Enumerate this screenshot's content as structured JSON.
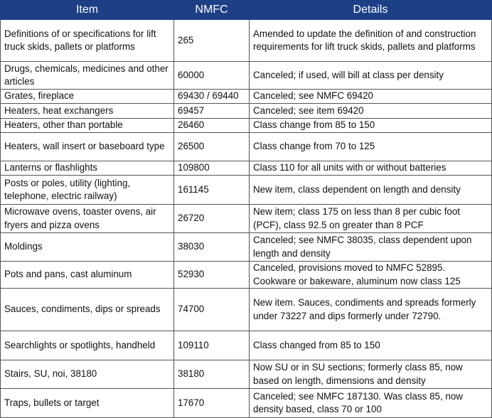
{
  "table": {
    "header": [
      "Item",
      "NMFC",
      "Details"
    ],
    "rows": [
      [
        "Definitions of or specifications for lift truck skids, pallets or platforms",
        "265",
        "Amended to update the definition of and construction requirements for lift truck skids, pallets and platforms"
      ],
      [
        "Drugs, chemicals, medicines and other articles",
        "60000",
        "Canceled; if used, will bill at class per density"
      ],
      [
        "Grates, fireplace",
        "69430 / 69440",
        "Canceled; see NMFC 69420"
      ],
      [
        "Heaters, heat exchangers",
        "69457",
        "Canceled; see item 69420"
      ],
      [
        "Heaters, other than portable",
        "26460",
        "Class change from 85 to 150"
      ],
      [
        "Heaters, wall insert or baseboard type",
        "26500",
        "Class change from 70 to 125"
      ],
      [
        "Lanterns or flashlights",
        "109800",
        "Class 110 for all units with or without batteries"
      ],
      [
        "Posts or poles, utility (lighting, telephone, electric railway)",
        "161145",
        "New item, class dependent on length and density"
      ],
      [
        "Microwave ovens, toaster ovens, air fryers and pizza ovens",
        "26720",
        "New item; class 175 on less than 8 per cubic foot (PCF), class 92.5 on greater than 8 PCF"
      ],
      [
        "Moldings",
        "38030",
        "Canceled; see NMFC 38035, class dependent upon length and density"
      ],
      [
        "Pots and pans, cast aluminum",
        "52930",
        "Canceled, provisions moved to NMFC 52895. Cookware or bakeware, aluminum now class 125"
      ],
      [
        "Sauces, condiments, dips or spreads",
        "74700",
        "New item. Sauces, condiments and spreads formerly under 73227 and dips formerly under 72790."
      ],
      [
        "Searchlights or spotlights, handheld",
        "109110",
        "Class changed from 85 to 150"
      ],
      [
        "Stairs, SU, noi, 38180",
        "38180",
        "Now SU or in SU sections; formerly class 85, now based on length, dimensions and density"
      ],
      [
        "Traps, bullets or target",
        "17670",
        "Canceled; see NMFC 187130. Was class 85, now density based, class 70 or 100"
      ]
    ]
  }
}
